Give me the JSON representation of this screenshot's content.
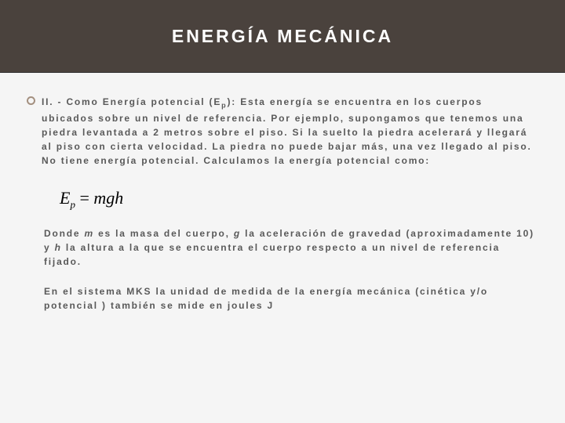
{
  "colors": {
    "header_bg": "#4a423d",
    "title_color": "#ffffff",
    "bullet_border": "#a38f7f",
    "body_text": "#595959",
    "page_bg": "#f5f5f5",
    "formula_color": "#000000"
  },
  "typography": {
    "title_fontsize": 23,
    "title_letter_spacing": 3,
    "body_fontsize": 12,
    "body_letter_spacing": 1.8,
    "formula_fontsize": 22
  },
  "title": "ENERGÍA MECÁNICA",
  "para1_a": "II. - Como Energía potencial (E",
  "para1_sub": "p",
  "para1_b": "): Esta energía se encuentra en los cuerpos ubicados sobre un nivel de referencia. Por ejemplo, supongamos que tenemos una piedra levantada a 2 metros sobre el piso. Si la suelto la piedra acelerará y llegará al piso con cierta velocidad. La piedra no puede bajar más, una vez llegado al piso. No tiene energía potencial. Calculamos la energía potencial como:",
  "formula": {
    "lhs_var": "E",
    "lhs_sub": "p",
    "eq": " = ",
    "rhs": "mgh"
  },
  "para2_a": "Donde ",
  "para2_m": "m",
  "para2_b": " es la masa del cuerpo, ",
  "para2_g": "g",
  "para2_c": " la aceleración de gravedad (aproximadamente 10)  y ",
  "para2_h": "h",
  "para2_d": "  la altura a la que se encuentra el cuerpo respecto a un  nivel de referencia fijado.",
  "para3": "En el sistema MKS la unidad de medida de la energía mecánica (cinética y/o potencial ) también se mide en joules J"
}
